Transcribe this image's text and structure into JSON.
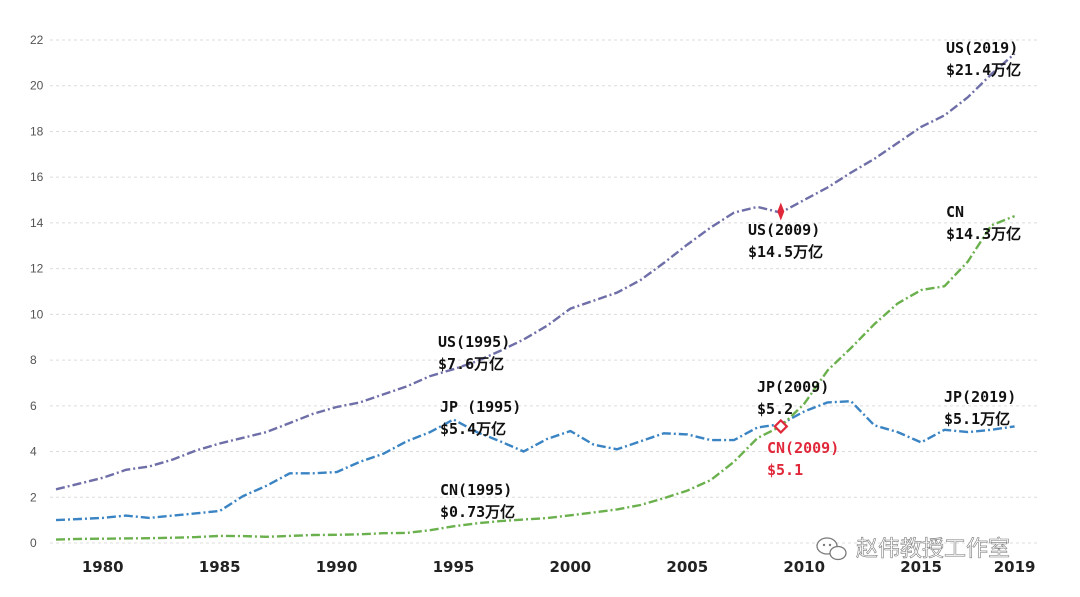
{
  "chart_data": {
    "type": "line",
    "title": "",
    "xlabel": "",
    "ylabel": "",
    "xlim": [
      1978,
      2020
    ],
    "ylim": [
      0,
      22
    ],
    "yticks": [
      0,
      2,
      4,
      6,
      8,
      10,
      12,
      14,
      16,
      18,
      20,
      22
    ],
    "xticks": [
      1980,
      1985,
      1990,
      1995,
      2000,
      2005,
      2010,
      2015,
      2019
    ],
    "grid": "horizontal dashed",
    "legend": "none",
    "series": [
      {
        "key": "US",
        "color": "#6e6ea8",
        "x": [
          1978,
          1979,
          1980,
          1981,
          1982,
          1983,
          1984,
          1985,
          1986,
          1987,
          1988,
          1989,
          1990,
          1991,
          1992,
          1993,
          1994,
          1995,
          1996,
          1997,
          1998,
          1999,
          2000,
          2001,
          2002,
          2003,
          2004,
          2005,
          2006,
          2007,
          2008,
          2009,
          2010,
          2011,
          2012,
          2013,
          2014,
          2015,
          2016,
          2017,
          2018,
          2019
        ],
        "y": [
          2.35,
          2.6,
          2.85,
          3.2,
          3.35,
          3.65,
          4.05,
          4.35,
          4.6,
          4.85,
          5.25,
          5.65,
          5.95,
          6.15,
          6.5,
          6.85,
          7.3,
          7.6,
          7.95,
          8.4,
          8.9,
          9.5,
          10.25,
          10.6,
          10.95,
          11.5,
          12.25,
          13.05,
          13.8,
          14.45,
          14.7,
          14.45,
          15.0,
          15.55,
          16.2,
          16.8,
          17.5,
          18.2,
          18.7,
          19.5,
          20.5,
          21.4
        ]
      },
      {
        "key": "JP",
        "color": "#3a84c4",
        "x": [
          1978,
          1979,
          1980,
          1981,
          1982,
          1983,
          1984,
          1985,
          1986,
          1987,
          1988,
          1989,
          1990,
          1991,
          1992,
          1993,
          1994,
          1995,
          1996,
          1997,
          1998,
          1999,
          2000,
          2001,
          2002,
          2003,
          2004,
          2005,
          2006,
          2007,
          2008,
          2009,
          2010,
          2011,
          2012,
          2013,
          2014,
          2015,
          2016,
          2017,
          2018,
          2019
        ],
        "y": [
          1.0,
          1.05,
          1.1,
          1.2,
          1.1,
          1.2,
          1.3,
          1.4,
          2.05,
          2.5,
          3.05,
          3.05,
          3.1,
          3.55,
          3.9,
          4.45,
          4.85,
          5.4,
          4.85,
          4.45,
          4.0,
          4.55,
          4.9,
          4.3,
          4.1,
          4.45,
          4.8,
          4.75,
          4.5,
          4.5,
          5.05,
          5.2,
          5.75,
          6.15,
          6.2,
          5.15,
          4.85,
          4.4,
          4.95,
          4.85,
          4.95,
          5.1
        ]
      },
      {
        "key": "CN",
        "color": "#6ab04c",
        "x": [
          1978,
          1979,
          1980,
          1981,
          1982,
          1983,
          1984,
          1985,
          1986,
          1987,
          1988,
          1989,
          1990,
          1991,
          1992,
          1993,
          1994,
          1995,
          1996,
          1997,
          1998,
          1999,
          2000,
          2001,
          2002,
          2003,
          2004,
          2005,
          2006,
          2007,
          2008,
          2009,
          2010,
          2011,
          2012,
          2013,
          2014,
          2015,
          2016,
          2017,
          2018,
          2019
        ],
        "y": [
          0.15,
          0.18,
          0.19,
          0.2,
          0.21,
          0.23,
          0.26,
          0.31,
          0.3,
          0.27,
          0.31,
          0.35,
          0.36,
          0.38,
          0.43,
          0.44,
          0.56,
          0.73,
          0.86,
          0.96,
          1.03,
          1.09,
          1.21,
          1.34,
          1.47,
          1.66,
          1.96,
          2.29,
          2.75,
          3.55,
          4.59,
          5.1,
          6.09,
          7.55,
          8.53,
          9.57,
          10.48,
          11.06,
          11.23,
          12.31,
          13.89,
          14.3
        ]
      }
    ],
    "markers": [
      {
        "series": "US",
        "x": 2009,
        "y": 14.5,
        "style": "red-diamond-filled"
      },
      {
        "series": "JP",
        "x": 2009,
        "y": 5.1,
        "style": "red-diamond-open"
      }
    ],
    "annotations": [
      {
        "key": "us2019",
        "lines": [
          "US(2019)",
          "$21.4万亿"
        ],
        "color": "#111111"
      },
      {
        "key": "us2009",
        "lines": [
          "US(2009)",
          "$14.5万亿"
        ],
        "color": "#111111"
      },
      {
        "key": "cn2019",
        "lines": [
          "CN",
          "$14.3万亿"
        ],
        "color": "#111111"
      },
      {
        "key": "us1995",
        "lines": [
          "US(1995)",
          "$7.6万亿"
        ],
        "color": "#111111"
      },
      {
        "key": "jp1995",
        "lines": [
          "JP (1995)",
          "$5.4万亿"
        ],
        "color": "#111111"
      },
      {
        "key": "jp2009",
        "lines": [
          "JP(2009)",
          "$5.2"
        ],
        "color": "#111111"
      },
      {
        "key": "cn2009",
        "lines": [
          "CN(2009)",
          "$5.1"
        ],
        "color": "#e0283a"
      },
      {
        "key": "jp2019",
        "lines": [
          "JP(2019)",
          "$5.1万亿"
        ],
        "color": "#111111"
      },
      {
        "key": "cn1995",
        "lines": [
          "CN(1995)",
          "$0.73万亿"
        ],
        "color": "#111111"
      }
    ]
  },
  "watermark": {
    "text": "赵伟教授工作室",
    "icon": "wechat-icon"
  }
}
